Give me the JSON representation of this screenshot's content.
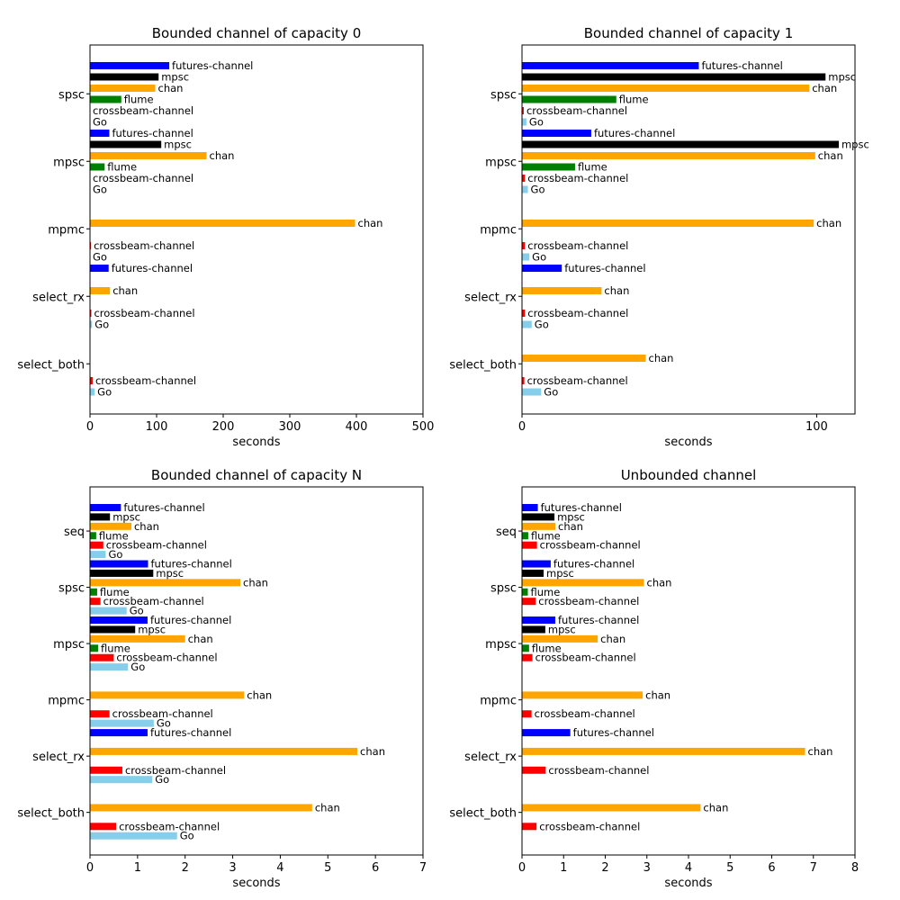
{
  "colors": {
    "futures-channel": "#0000ff",
    "mpsc": "#000000",
    "chan": "#ffa500",
    "flume": "#008000",
    "crossbeam-channel": "#ff0000",
    "Go": "#87ceeb"
  },
  "chart_data": [
    {
      "type": "bar",
      "title": "Bounded channel of capacity 0",
      "xlabel": "seconds",
      "xlim": [
        0,
        500
      ],
      "xticks": [
        0,
        100,
        200,
        300,
        400,
        500
      ],
      "groups": [
        {
          "name": "spsc",
          "bars": [
            {
              "label": "futures-channel",
              "value": 119
            },
            {
              "label": "mpsc",
              "value": 103
            },
            {
              "label": "chan",
              "value": 98
            },
            {
              "label": "flume",
              "value": 47
            },
            {
              "label": "crossbeam-channel",
              "value": 0
            },
            {
              "label": "Go",
              "value": 0
            }
          ]
        },
        {
          "name": "mpsc",
          "bars": [
            {
              "label": "futures-channel",
              "value": 29
            },
            {
              "label": "mpsc",
              "value": 107
            },
            {
              "label": "chan",
              "value": 175
            },
            {
              "label": "flume",
              "value": 22
            },
            {
              "label": "crossbeam-channel",
              "value": 0
            },
            {
              "label": "Go",
              "value": 0
            }
          ]
        },
        {
          "name": "mpmc",
          "bars": [
            {
              "label": null,
              "value": null
            },
            {
              "label": null,
              "value": null
            },
            {
              "label": "chan",
              "value": 398
            },
            {
              "label": null,
              "value": null
            },
            {
              "label": "crossbeam-channel",
              "value": 1.5
            },
            {
              "label": "Go",
              "value": 0
            }
          ]
        },
        {
          "name": "select_rx",
          "bars": [
            {
              "label": "futures-channel",
              "value": 28
            },
            {
              "label": null,
              "value": null
            },
            {
              "label": "chan",
              "value": 30
            },
            {
              "label": null,
              "value": null
            },
            {
              "label": "crossbeam-channel",
              "value": 2
            },
            {
              "label": "Go",
              "value": 3
            }
          ]
        },
        {
          "name": "select_both",
          "bars": [
            {
              "label": null,
              "value": null
            },
            {
              "label": null,
              "value": null
            },
            {
              "label": null,
              "value": null
            },
            {
              "label": null,
              "value": null
            },
            {
              "label": "crossbeam-channel",
              "value": 4
            },
            {
              "label": "Go",
              "value": 7
            }
          ]
        }
      ]
    },
    {
      "type": "bar",
      "title": "Bounded channel of capacity 1",
      "xlabel": "seconds",
      "xlim": [
        0,
        113
      ],
      "xticks": [
        0,
        100
      ],
      "groups": [
        {
          "name": "spsc",
          "bars": [
            {
              "label": "futures-channel",
              "value": 60
            },
            {
              "label": "mpsc",
              "value": 103
            },
            {
              "label": "chan",
              "value": 97.5
            },
            {
              "label": "flume",
              "value": 32
            },
            {
              "label": "crossbeam-channel",
              "value": 0.6
            },
            {
              "label": "Go",
              "value": 1.5
            }
          ]
        },
        {
          "name": "mpsc",
          "bars": [
            {
              "label": "futures-channel",
              "value": 23.5
            },
            {
              "label": "mpsc",
              "value": 107.5
            },
            {
              "label": "chan",
              "value": 99.5
            },
            {
              "label": "flume",
              "value": 18
            },
            {
              "label": "crossbeam-channel",
              "value": 1
            },
            {
              "label": "Go",
              "value": 2
            }
          ]
        },
        {
          "name": "mpmc",
          "bars": [
            {
              "label": null,
              "value": null
            },
            {
              "label": null,
              "value": null
            },
            {
              "label": "chan",
              "value": 99
            },
            {
              "label": null,
              "value": null
            },
            {
              "label": "crossbeam-channel",
              "value": 1
            },
            {
              "label": "Go",
              "value": 2.5
            }
          ]
        },
        {
          "name": "select_rx",
          "bars": [
            {
              "label": "futures-channel",
              "value": 13.5
            },
            {
              "label": null,
              "value": null
            },
            {
              "label": "chan",
              "value": 27
            },
            {
              "label": null,
              "value": null
            },
            {
              "label": "crossbeam-channel",
              "value": 1
            },
            {
              "label": "Go",
              "value": 3.3
            }
          ]
        },
        {
          "name": "select_both",
          "bars": [
            {
              "label": null,
              "value": null
            },
            {
              "label": null,
              "value": null
            },
            {
              "label": "chan",
              "value": 42
            },
            {
              "label": null,
              "value": null
            },
            {
              "label": "crossbeam-channel",
              "value": 0.8
            },
            {
              "label": "Go",
              "value": 6.5
            }
          ]
        }
      ]
    },
    {
      "type": "bar",
      "title": "Bounded channel of capacity N",
      "xlabel": "seconds",
      "xlim": [
        0,
        7
      ],
      "xticks": [
        0,
        1,
        2,
        3,
        4,
        5,
        6,
        7
      ],
      "groups": [
        {
          "name": "seq",
          "bars": [
            {
              "label": "futures-channel",
              "value": 0.65
            },
            {
              "label": "mpsc",
              "value": 0.42
            },
            {
              "label": "chan",
              "value": 0.87
            },
            {
              "label": "flume",
              "value": 0.13
            },
            {
              "label": "crossbeam-channel",
              "value": 0.28
            },
            {
              "label": "Go",
              "value": 0.33
            }
          ]
        },
        {
          "name": "spsc",
          "bars": [
            {
              "label": "futures-channel",
              "value": 1.22
            },
            {
              "label": "mpsc",
              "value": 1.33
            },
            {
              "label": "chan",
              "value": 3.16
            },
            {
              "label": "flume",
              "value": 0.15
            },
            {
              "label": "crossbeam-channel",
              "value": 0.22
            },
            {
              "label": "Go",
              "value": 0.77
            }
          ]
        },
        {
          "name": "mpsc",
          "bars": [
            {
              "label": "futures-channel",
              "value": 1.21
            },
            {
              "label": "mpsc",
              "value": 0.95
            },
            {
              "label": "chan",
              "value": 2.0
            },
            {
              "label": "flume",
              "value": 0.17
            },
            {
              "label": "crossbeam-channel",
              "value": 0.5
            },
            {
              "label": "Go",
              "value": 0.8
            }
          ]
        },
        {
          "name": "mpmc",
          "bars": [
            {
              "label": null,
              "value": null
            },
            {
              "label": null,
              "value": null
            },
            {
              "label": "chan",
              "value": 3.24
            },
            {
              "label": null,
              "value": null
            },
            {
              "label": "crossbeam-channel",
              "value": 0.41
            },
            {
              "label": "Go",
              "value": 1.34
            }
          ]
        },
        {
          "name": "select_rx",
          "bars": [
            {
              "label": "futures-channel",
              "value": 1.21
            },
            {
              "label": null,
              "value": null
            },
            {
              "label": "chan",
              "value": 5.62
            },
            {
              "label": null,
              "value": null
            },
            {
              "label": "crossbeam-channel",
              "value": 0.68
            },
            {
              "label": "Go",
              "value": 1.31
            }
          ]
        },
        {
          "name": "select_both",
          "bars": [
            {
              "label": null,
              "value": null
            },
            {
              "label": null,
              "value": null
            },
            {
              "label": "chan",
              "value": 4.67
            },
            {
              "label": null,
              "value": null
            },
            {
              "label": "crossbeam-channel",
              "value": 0.55
            },
            {
              "label": "Go",
              "value": 1.83
            }
          ]
        }
      ]
    },
    {
      "type": "bar",
      "title": "Unbounded channel",
      "xlabel": "seconds",
      "xlim": [
        0,
        8
      ],
      "xticks": [
        0,
        1,
        2,
        3,
        4,
        5,
        6,
        7,
        8
      ],
      "groups": [
        {
          "name": "seq",
          "bars": [
            {
              "label": "futures-channel",
              "value": 0.38
            },
            {
              "label": "mpsc",
              "value": 0.78
            },
            {
              "label": "chan",
              "value": 0.8
            },
            {
              "label": "flume",
              "value": 0.15
            },
            {
              "label": "crossbeam-channel",
              "value": 0.36
            },
            {
              "label": null,
              "value": null
            }
          ]
        },
        {
          "name": "spsc",
          "bars": [
            {
              "label": "futures-channel",
              "value": 0.69
            },
            {
              "label": "mpsc",
              "value": 0.52
            },
            {
              "label": "chan",
              "value": 2.93
            },
            {
              "label": "flume",
              "value": 0.14
            },
            {
              "label": "crossbeam-channel",
              "value": 0.33
            },
            {
              "label": null,
              "value": null
            }
          ]
        },
        {
          "name": "mpsc",
          "bars": [
            {
              "label": "futures-channel",
              "value": 0.8
            },
            {
              "label": "mpsc",
              "value": 0.56
            },
            {
              "label": "chan",
              "value": 1.82
            },
            {
              "label": "flume",
              "value": 0.17
            },
            {
              "label": "crossbeam-channel",
              "value": 0.25
            },
            {
              "label": null,
              "value": null
            }
          ]
        },
        {
          "name": "mpmc",
          "bars": [
            {
              "label": null,
              "value": null
            },
            {
              "label": null,
              "value": null
            },
            {
              "label": "chan",
              "value": 2.9
            },
            {
              "label": null,
              "value": null
            },
            {
              "label": "crossbeam-channel",
              "value": 0.23
            },
            {
              "label": null,
              "value": null
            }
          ]
        },
        {
          "name": "select_rx",
          "bars": [
            {
              "label": "futures-channel",
              "value": 1.16
            },
            {
              "label": null,
              "value": null
            },
            {
              "label": "chan",
              "value": 6.8
            },
            {
              "label": null,
              "value": null
            },
            {
              "label": "crossbeam-channel",
              "value": 0.57
            },
            {
              "label": null,
              "value": null
            }
          ]
        },
        {
          "name": "select_both",
          "bars": [
            {
              "label": null,
              "value": null
            },
            {
              "label": null,
              "value": null
            },
            {
              "label": "chan",
              "value": 4.29
            },
            {
              "label": null,
              "value": null
            },
            {
              "label": "crossbeam-channel",
              "value": 0.35
            },
            {
              "label": null,
              "value": null
            }
          ]
        }
      ]
    }
  ]
}
